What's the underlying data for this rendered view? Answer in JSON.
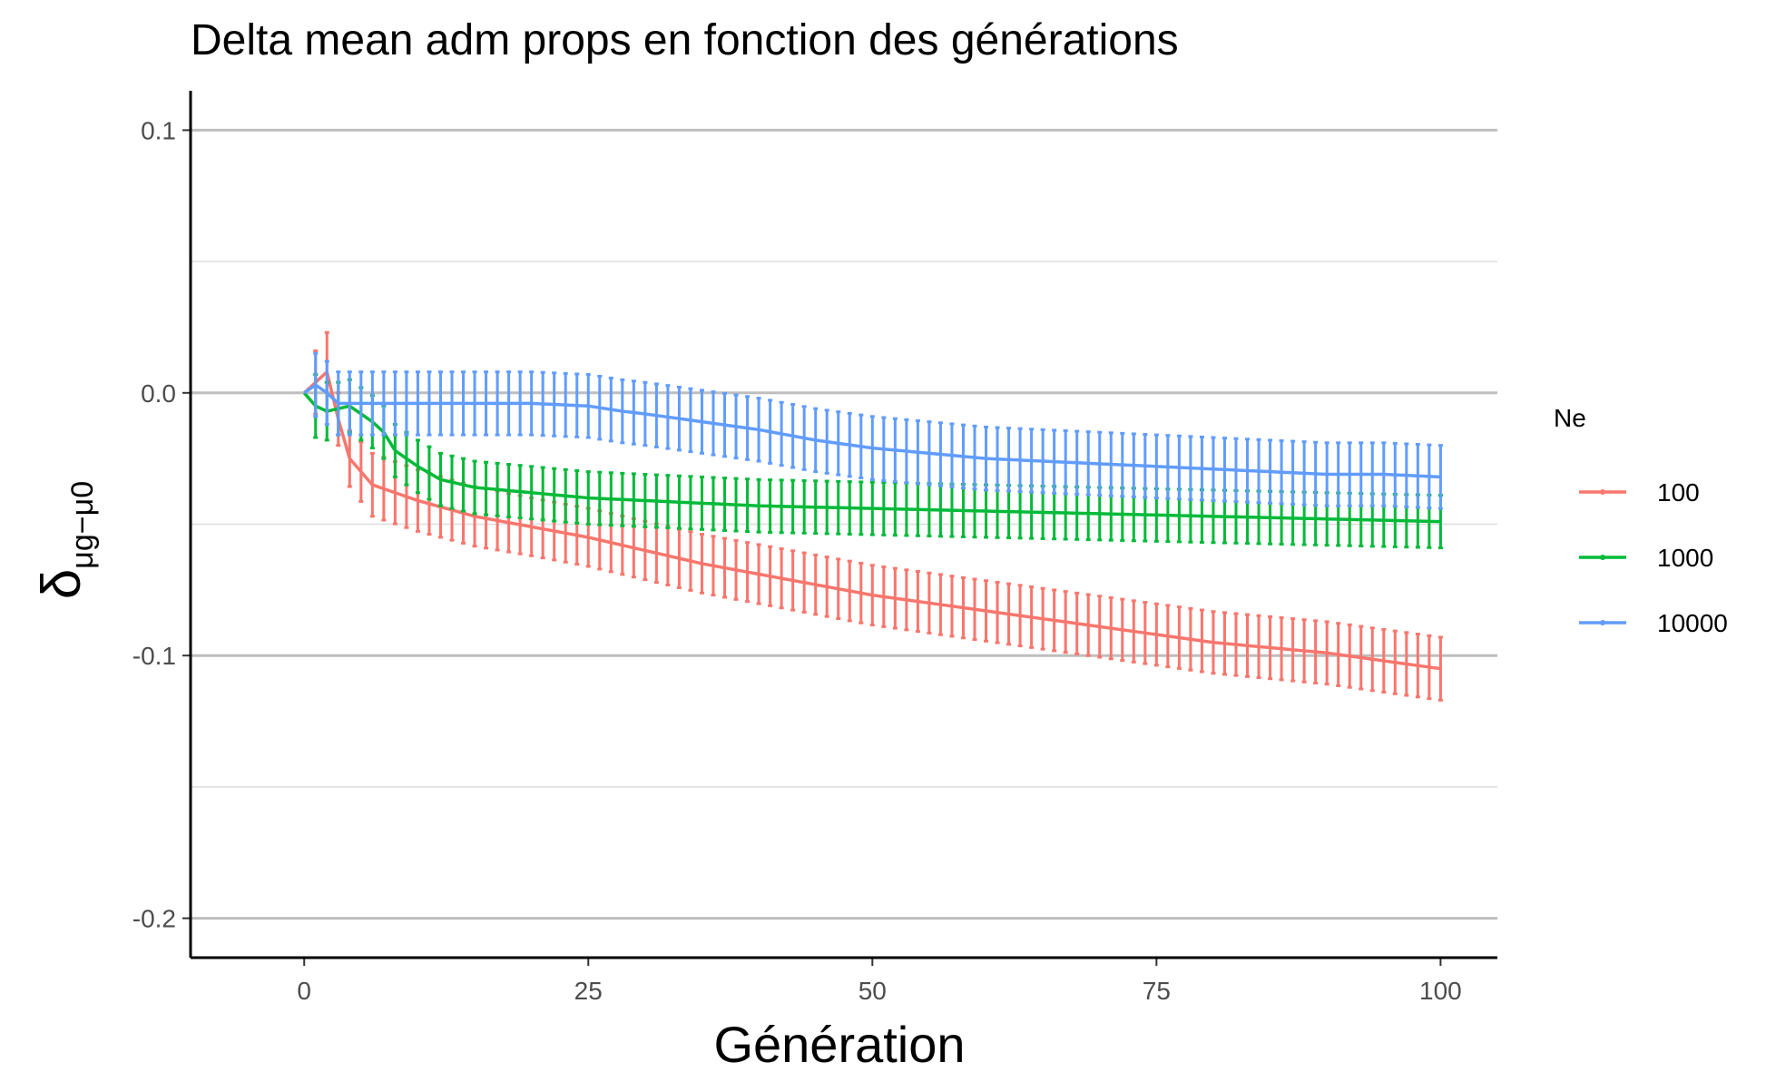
{
  "chart_data": {
    "type": "line",
    "title": "Delta mean adm props en fonction des générations",
    "xlabel": "Génération",
    "ylabel": "δ",
    "ylabel_sub": "μg−μ0",
    "xlim": [
      -10,
      105
    ],
    "ylim": [
      -0.215,
      0.115
    ],
    "x_ticks": [
      0,
      25,
      50,
      75,
      100
    ],
    "x_tick_labels": [
      "0",
      "25",
      "50",
      "75",
      "100"
    ],
    "y_ticks": [
      0.1,
      0.0,
      -0.1,
      -0.2
    ],
    "y_tick_labels": [
      "0.1",
      "0.0",
      "-0.1",
      "-0.2"
    ],
    "y_minor_ticks": [
      0.05,
      -0.05,
      -0.15
    ],
    "grid": "horizontal",
    "legend": {
      "title": "Ne",
      "position": "right"
    },
    "series": [
      {
        "name": "100",
        "color": "#F8766D",
        "anchors": [
          [
            0,
            0.0
          ],
          [
            1,
            0.004
          ],
          [
            2,
            0.008
          ],
          [
            3,
            -0.01
          ],
          [
            4,
            -0.025
          ],
          [
            5,
            -0.03
          ],
          [
            6,
            -0.035
          ],
          [
            8,
            -0.038
          ],
          [
            10,
            -0.041
          ],
          [
            15,
            -0.047
          ],
          [
            20,
            -0.051
          ],
          [
            25,
            -0.055
          ],
          [
            30,
            -0.06
          ],
          [
            35,
            -0.065
          ],
          [
            40,
            -0.069
          ],
          [
            45,
            -0.073
          ],
          [
            50,
            -0.077
          ],
          [
            55,
            -0.08
          ],
          [
            60,
            -0.083
          ],
          [
            65,
            -0.086
          ],
          [
            70,
            -0.089
          ],
          [
            75,
            -0.092
          ],
          [
            80,
            -0.095
          ],
          [
            85,
            -0.097
          ],
          [
            90,
            -0.099
          ],
          [
            95,
            -0.102
          ],
          [
            100,
            -0.105
          ]
        ],
        "err_anchors": [
          [
            0,
            0.0
          ],
          [
            1,
            0.012
          ],
          [
            2,
            0.015
          ],
          [
            3,
            0.01
          ],
          [
            6,
            0.012
          ],
          [
            20,
            0.011
          ],
          [
            100,
            0.012
          ]
        ]
      },
      {
        "name": "1000",
        "color": "#00BA38",
        "anchors": [
          [
            0,
            0.0
          ],
          [
            1,
            -0.005
          ],
          [
            2,
            -0.007
          ],
          [
            3,
            -0.006
          ],
          [
            4,
            -0.005
          ],
          [
            5,
            -0.008
          ],
          [
            6,
            -0.011
          ],
          [
            7,
            -0.015
          ],
          [
            8,
            -0.022
          ],
          [
            10,
            -0.028
          ],
          [
            12,
            -0.033
          ],
          [
            15,
            -0.036
          ],
          [
            20,
            -0.038
          ],
          [
            25,
            -0.04
          ],
          [
            30,
            -0.041
          ],
          [
            40,
            -0.043
          ],
          [
            50,
            -0.044
          ],
          [
            60,
            -0.045
          ],
          [
            70,
            -0.046
          ],
          [
            80,
            -0.047
          ],
          [
            90,
            -0.048
          ],
          [
            100,
            -0.049
          ]
        ],
        "err_anchors": [
          [
            0,
            0.0
          ],
          [
            1,
            0.012
          ],
          [
            3,
            0.01
          ],
          [
            6,
            0.01
          ],
          [
            100,
            0.01
          ]
        ]
      },
      {
        "name": "10000",
        "color": "#619CFF",
        "anchors": [
          [
            0,
            0.0
          ],
          [
            1,
            0.003
          ],
          [
            2,
            0.0
          ],
          [
            3,
            -0.004
          ],
          [
            5,
            -0.004
          ],
          [
            10,
            -0.004
          ],
          [
            15,
            -0.004
          ],
          [
            20,
            -0.004
          ],
          [
            25,
            -0.005
          ],
          [
            28,
            -0.007
          ],
          [
            30,
            -0.008
          ],
          [
            35,
            -0.011
          ],
          [
            40,
            -0.014
          ],
          [
            45,
            -0.018
          ],
          [
            50,
            -0.021
          ],
          [
            55,
            -0.023
          ],
          [
            60,
            -0.025
          ],
          [
            65,
            -0.026
          ],
          [
            70,
            -0.027
          ],
          [
            75,
            -0.028
          ],
          [
            80,
            -0.029
          ],
          [
            85,
            -0.03
          ],
          [
            90,
            -0.031
          ],
          [
            95,
            -0.031
          ],
          [
            100,
            -0.032
          ]
        ],
        "err_anchors": [
          [
            0,
            0.0
          ],
          [
            1,
            0.012
          ],
          [
            3,
            0.012
          ],
          [
            100,
            0.012
          ]
        ]
      }
    ]
  }
}
